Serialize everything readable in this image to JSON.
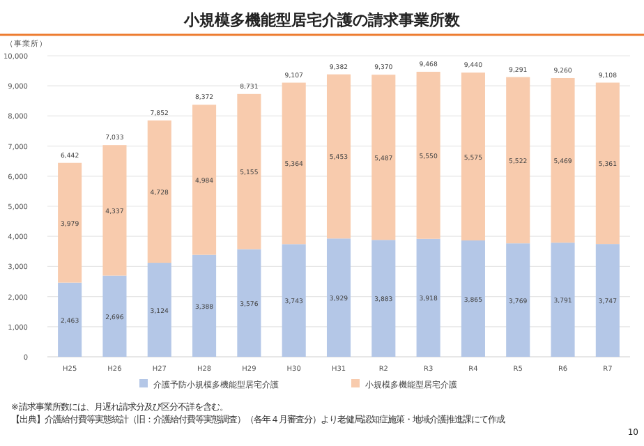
{
  "chart_data": {
    "type": "bar",
    "title": "小規模多機能型居宅介護の請求事業所数",
    "ylabel": "（事業所）",
    "categories": [
      "H25",
      "H26",
      "H27",
      "H28",
      "H29",
      "H30",
      "H31",
      "R2",
      "R3",
      "R4",
      "R5",
      "R6",
      "R7"
    ],
    "series": [
      {
        "name": "介護予防小規模多機能型居宅介護",
        "color": "#b4c7e7",
        "values": [
          2463,
          2696,
          3124,
          3388,
          3576,
          3743,
          3929,
          3883,
          3918,
          3865,
          3769,
          3791,
          3747
        ],
        "value_labels": [
          "2,463",
          "2,696",
          "3,124",
          "3,388",
          "3,576",
          "3,743",
          "3,929",
          "3,883",
          "3,918",
          "3,865",
          "3,769",
          "3,791",
          "3,747"
        ]
      },
      {
        "name": "小規模多機能型居宅介護",
        "color": "#f8cbad",
        "values": [
          3979,
          4337,
          4728,
          4984,
          5155,
          5364,
          5453,
          5487,
          5550,
          5575,
          5522,
          5469,
          5361
        ],
        "value_labels": [
          "3,979",
          "4,337",
          "4,728",
          "4,984",
          "5,155",
          "5,364",
          "5,453",
          "5,487",
          "5,550",
          "5,575",
          "5,522",
          "5,469",
          "5,361"
        ]
      }
    ],
    "stacked": true,
    "totals": [
      "6,442",
      "7,033",
      "7,852",
      "8,372",
      "8,731",
      "9,107",
      "9,382",
      "9,370",
      "9,468",
      "9,440",
      "9,291",
      "9,260",
      "9,108"
    ],
    "ylim": [
      0,
      10000
    ],
    "yticks": [
      {
        "value": 0,
        "label": "0"
      },
      {
        "value": 1000,
        "label": "1,000"
      },
      {
        "value": 2000,
        "label": "2,000"
      },
      {
        "value": 3000,
        "label": "3,000"
      },
      {
        "value": 4000,
        "label": "4,000"
      },
      {
        "value": 5000,
        "label": "5,000"
      },
      {
        "value": 6000,
        "label": "6,000"
      },
      {
        "value": 7000,
        "label": "7,000"
      },
      {
        "value": 8000,
        "label": "8,000"
      },
      {
        "value": 9000,
        "label": "9,000"
      },
      {
        "value": 10000,
        "label": "10,000"
      }
    ],
    "grid": "y",
    "legend": "bottom",
    "annotations": [
      "※請求事業所数には、月遅れ請求分及び区分不詳を含む。",
      "【出典】介護給付費等実態統計（旧：介護給付費等実態調査）（各年４月審査分）より老健局認知症施策・地域介護推進課にて作成",
      "10"
    ]
  }
}
